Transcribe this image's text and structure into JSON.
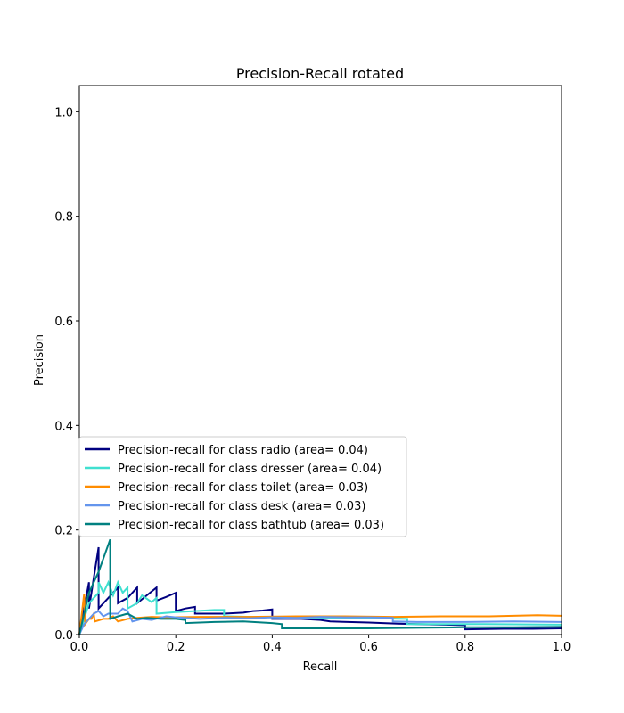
{
  "chart_data": {
    "type": "line",
    "title": "Precision-Recall rotated",
    "xlabel": "Recall",
    "ylabel": "Precision",
    "xlim": [
      0.0,
      1.0
    ],
    "ylim": [
      0.0,
      1.05
    ],
    "xticks": [
      "0.0",
      "0.2",
      "0.4",
      "0.6",
      "0.8",
      "1.0"
    ],
    "yticks": [
      "0.0",
      "0.2",
      "0.4",
      "0.6",
      "0.8",
      "1.0"
    ],
    "grid": false,
    "legend_position": "lower-left",
    "series": [
      {
        "name": "Precision-recall for class radio (area= 0.04)",
        "color": "#000080",
        "x": [
          0.0,
          0.02,
          0.02,
          0.04,
          0.04,
          0.06,
          0.08,
          0.08,
          0.1,
          0.12,
          0.12,
          0.14,
          0.16,
          0.16,
          0.18,
          0.2,
          0.2,
          0.22,
          0.24,
          0.24,
          0.3,
          0.34,
          0.36,
          0.38,
          0.4,
          0.4,
          0.46,
          0.5,
          0.52,
          0.6,
          0.66,
          0.7,
          0.76,
          0.8,
          0.8,
          0.88,
          0.94,
          1.0
        ],
        "y": [
          0.0,
          0.1,
          0.05,
          0.167,
          0.05,
          0.07,
          0.09,
          0.06,
          0.07,
          0.09,
          0.06,
          0.075,
          0.09,
          0.065,
          0.072,
          0.08,
          0.045,
          0.05,
          0.053,
          0.04,
          0.04,
          0.042,
          0.045,
          0.046,
          0.048,
          0.03,
          0.03,
          0.028,
          0.025,
          0.023,
          0.021,
          0.02,
          0.019,
          0.018,
          0.01,
          0.011,
          0.011,
          0.012
        ]
      },
      {
        "name": "Precision-recall for class dresser (area= 0.04)",
        "color": "#40e0d0",
        "x": [
          0.0,
          0.02,
          0.04,
          0.04,
          0.05,
          0.06,
          0.07,
          0.08,
          0.09,
          0.1,
          0.1,
          0.12,
          0.13,
          0.15,
          0.16,
          0.16,
          0.2,
          0.24,
          0.28,
          0.3,
          0.3,
          0.4,
          0.5,
          0.6,
          0.62,
          0.68,
          0.68,
          0.76,
          0.84,
          1.0
        ],
        "y": [
          0.0,
          0.06,
          0.08,
          0.1,
          0.08,
          0.1,
          0.075,
          0.1,
          0.08,
          0.09,
          0.05,
          0.06,
          0.075,
          0.062,
          0.07,
          0.04,
          0.043,
          0.045,
          0.047,
          0.047,
          0.035,
          0.033,
          0.032,
          0.031,
          0.031,
          0.03,
          0.02,
          0.02,
          0.02,
          0.019
        ]
      },
      {
        "name": "Precision-recall for class toilet (area= 0.03)",
        "color": "#ff8c00",
        "x": [
          0.0,
          0.01,
          0.012,
          0.02,
          0.025,
          0.03,
          0.032,
          0.05,
          0.06,
          0.07,
          0.08,
          0.1,
          0.12,
          0.15,
          0.18,
          0.25,
          0.35,
          0.45,
          0.55,
          0.65,
          0.75,
          0.85,
          0.95,
          1.0
        ],
        "y": [
          0.0,
          0.078,
          0.02,
          0.03,
          0.03,
          0.04,
          0.025,
          0.03,
          0.03,
          0.035,
          0.025,
          0.03,
          0.032,
          0.034,
          0.033,
          0.034,
          0.034,
          0.035,
          0.035,
          0.034,
          0.035,
          0.035,
          0.037,
          0.036
        ]
      },
      {
        "name": "Precision-recall for class desk (area= 0.03)",
        "color": "#6495ed",
        "x": [
          0.0,
          0.01,
          0.02,
          0.03,
          0.04,
          0.05,
          0.06,
          0.08,
          0.09,
          0.1,
          0.11,
          0.13,
          0.15,
          0.18,
          0.2,
          0.25,
          0.3,
          0.35,
          0.4,
          0.45,
          0.5,
          0.55,
          0.6,
          0.65,
          0.65,
          0.7,
          0.8,
          0.9,
          1.0
        ],
        "y": [
          0.0,
          0.02,
          0.03,
          0.04,
          0.045,
          0.035,
          0.04,
          0.04,
          0.05,
          0.045,
          0.025,
          0.03,
          0.028,
          0.035,
          0.033,
          0.03,
          0.032,
          0.031,
          0.033,
          0.032,
          0.034,
          0.033,
          0.033,
          0.032,
          0.025,
          0.024,
          0.024,
          0.025,
          0.024
        ]
      },
      {
        "name": "Precision-recall for class bathtub (area= 0.03)",
        "color": "#008080",
        "x": [
          0.0,
          0.02,
          0.04,
          0.064,
          0.064,
          0.08,
          0.1,
          0.12,
          0.14,
          0.17,
          0.2,
          0.22,
          0.22,
          0.28,
          0.34,
          0.36,
          0.4,
          0.42,
          0.42,
          0.5,
          0.6,
          0.7,
          0.8,
          0.85,
          0.9,
          1.0
        ],
        "y": [
          0.0,
          0.08,
          0.12,
          0.182,
          0.03,
          0.035,
          0.04,
          0.03,
          0.032,
          0.03,
          0.03,
          0.028,
          0.022,
          0.024,
          0.025,
          0.024,
          0.022,
          0.02,
          0.012,
          0.012,
          0.012,
          0.013,
          0.014,
          0.014,
          0.014,
          0.015
        ]
      }
    ]
  }
}
